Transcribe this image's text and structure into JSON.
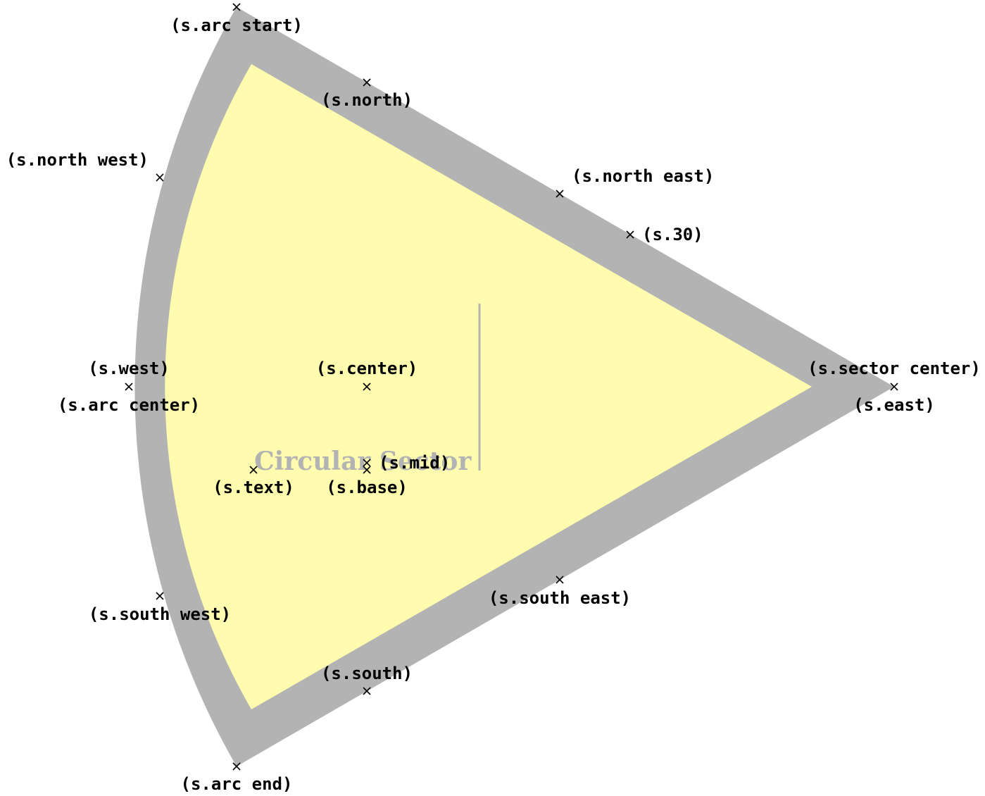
{
  "diagram": {
    "shape": "circular sector",
    "colors": {
      "fill": "#fffcb0",
      "border": "#b3b3b3",
      "marker": "#000000",
      "label": "#000000",
      "node_text": "#b3b3b3"
    },
    "node_text": "Circular Sector",
    "anchors": [
      {
        "id": "arc-start",
        "label": "(s.arc start)"
      },
      {
        "id": "north",
        "label": "(s.north)"
      },
      {
        "id": "north-west",
        "label": "(s.north west)"
      },
      {
        "id": "north-east",
        "label": "(s.north east)"
      },
      {
        "id": "deg-30",
        "label": "(s.30)"
      },
      {
        "id": "west",
        "label": "(s.west)"
      },
      {
        "id": "arc-center",
        "label": "(s.arc center)"
      },
      {
        "id": "center",
        "label": "(s.center)"
      },
      {
        "id": "sector-center",
        "label": "(s.sector center)"
      },
      {
        "id": "east",
        "label": "(s.east)"
      },
      {
        "id": "mid",
        "label": "(s.mid)"
      },
      {
        "id": "text",
        "label": "(s.text)"
      },
      {
        "id": "base",
        "label": "(s.base)"
      },
      {
        "id": "south-west",
        "label": "(s.south west)"
      },
      {
        "id": "south-east",
        "label": "(s.south east)"
      },
      {
        "id": "south",
        "label": "(s.south)"
      },
      {
        "id": "arc-end",
        "label": "(s.arc end)"
      }
    ]
  }
}
